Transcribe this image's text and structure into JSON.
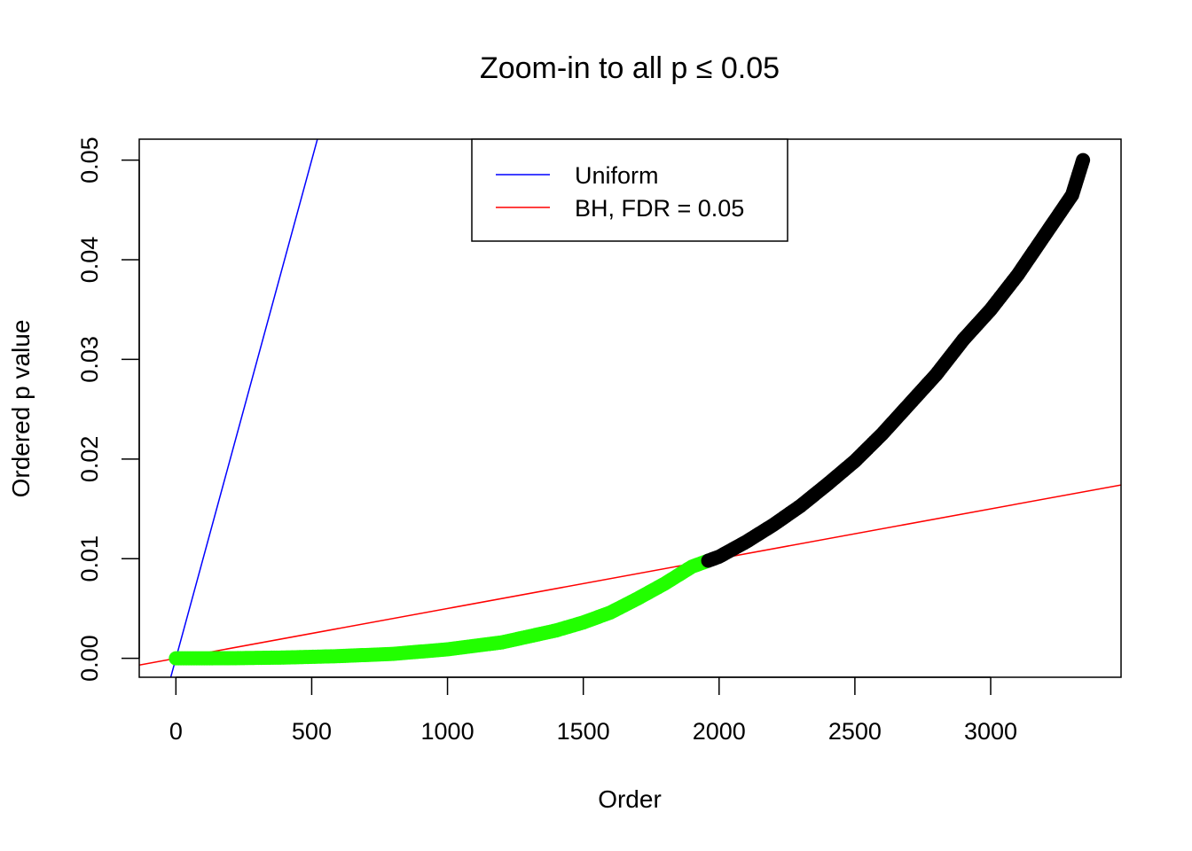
{
  "chart_data": {
    "type": "scatter",
    "title": "Zoom-in to all p ≤ 0.05",
    "xlabel": "Order",
    "ylabel": "Ordered p value",
    "xlim": [
      -135,
      3480
    ],
    "ylim": [
      -0.0019,
      0.0521
    ],
    "x_ticks": [
      0,
      500,
      1000,
      1500,
      2000,
      2500,
      3000
    ],
    "x_tick_labels": [
      "0",
      "500",
      "1000",
      "1500",
      "2000",
      "2500",
      "3000"
    ],
    "y_ticks": [
      0.0,
      0.01,
      0.02,
      0.03,
      0.04,
      0.05
    ],
    "y_tick_labels": [
      "0.00",
      "0.01",
      "0.02",
      "0.03",
      "0.04",
      "0.05"
    ],
    "grid": false,
    "legend": {
      "position": "top-center",
      "entries": [
        {
          "label": "Uniform",
          "color": "#0000ff"
        },
        {
          "label": "BH, FDR = 0.05",
          "color": "#ff0000"
        }
      ]
    },
    "reference_lines": [
      {
        "name": "Uniform",
        "color": "#0000ff",
        "slope": 0.0001,
        "intercept": 0.0
      },
      {
        "name": "BH, FDR = 0.05",
        "color": "#ff0000",
        "slope": 5e-06,
        "intercept": 0.0
      }
    ],
    "series": [
      {
        "color": "#22ff00",
        "note_color_meaning": "p values at or below BH line",
        "points": [
          [
            0,
            0.0
          ],
          [
            200,
            1e-05
          ],
          [
            400,
            8e-05
          ],
          [
            600,
            0.00022
          ],
          [
            800,
            0.00045
          ],
          [
            1000,
            0.0009
          ],
          [
            1200,
            0.0016
          ],
          [
            1400,
            0.0028
          ],
          [
            1500,
            0.0036
          ],
          [
            1600,
            0.0046
          ],
          [
            1700,
            0.006
          ],
          [
            1800,
            0.0075
          ],
          [
            1900,
            0.0092
          ],
          [
            1960,
            0.0098
          ]
        ]
      },
      {
        "color": "#000000",
        "points": [
          [
            1960,
            0.0098
          ],
          [
            2000,
            0.0102
          ],
          [
            2100,
            0.0117
          ],
          [
            2200,
            0.0134
          ],
          [
            2300,
            0.0153
          ],
          [
            2400,
            0.0175
          ],
          [
            2500,
            0.0198
          ],
          [
            2600,
            0.0225
          ],
          [
            2700,
            0.0255
          ],
          [
            2800,
            0.0285
          ],
          [
            2900,
            0.032
          ],
          [
            3000,
            0.035
          ],
          [
            3100,
            0.0385
          ],
          [
            3200,
            0.0425
          ],
          [
            3300,
            0.0465
          ],
          [
            3340,
            0.05
          ]
        ]
      }
    ]
  }
}
